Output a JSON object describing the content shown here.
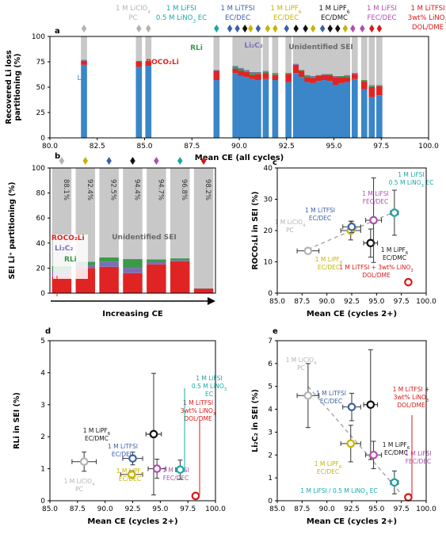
{
  "colors": {
    "li0": "#3a86c8",
    "roco2li": "#e02424",
    "rli": "#3a9a48",
    "li2c2": "#7b6fb5",
    "unidentified": "#c8c8c8",
    "liclo4_pc": "#b3b3b3",
    "litfsi_ecdec": "#3d60a8",
    "lipf6_ecdec": "#c8b400",
    "lipf6_ecdmc": "#111111",
    "lifsi_fecdec": "#b04fb0",
    "lifsi_lino3_ec": "#18a8a8",
    "litfsi_lino3_doldme": "#d81818"
  },
  "legend_top": [
    {
      "lines": [
        "1 M LiClO",
        "PC"
      ],
      "sub": [
        "4",
        ""
      ],
      "color": "#b3b3b3"
    },
    {
      "lines": [
        "1 M LiFSI",
        "0.5 M LiNO  EC"
      ],
      "sub": [
        "",
        "3"
      ],
      "color": "#18a8a8"
    },
    {
      "lines": [
        "1 M LiTFSI",
        "EC/DEC"
      ],
      "sub": [
        "",
        ""
      ],
      "color": "#3d60a8"
    },
    {
      "lines": [
        "1 M LiPF",
        "EC/DEC"
      ],
      "sub": [
        "6",
        ""
      ],
      "color": "#c8b400"
    },
    {
      "lines": [
        "1 M LiPF",
        "EC/DMC"
      ],
      "sub": [
        "6",
        ""
      ],
      "color": "#111111"
    },
    {
      "lines": [
        "1 M LiFSI",
        "FEC/DEC"
      ],
      "sub": [
        "",
        ""
      ],
      "color": "#b04fb0"
    },
    {
      "lines": [
        "1 M LiTFSI",
        "3wt% LiNO",
        "DOL/DME"
      ],
      "sub": [
        "",
        "3",
        ""
      ],
      "color": "#d81818"
    }
  ],
  "chart_data": [
    {
      "panel": "a",
      "type": "bar",
      "xlabel": "Mean CE (all cycles)",
      "ylabel": "Recovered Li loss partitioning (%)",
      "xlim": [
        80.0,
        100.0
      ],
      "ylim": [
        0,
        100
      ],
      "xticks": [
        "80.0",
        "82.5",
        "85.0",
        "87.5",
        "90.0",
        "92.5",
        "95.0",
        "97.5",
        "100.0"
      ],
      "yticks": [
        "0",
        "25",
        "50",
        "75",
        "100"
      ],
      "labels": {
        "li0": "Li⁰",
        "roco2li": "ROCO₂Li",
        "rli": "RLi",
        "li2c2": "Li₂C₂",
        "unidentified": "Unidentified SEI"
      },
      "bar_width": 0.2,
      "x": [
        81.8,
        84.7,
        85.2,
        88.8,
        89.8,
        90.1,
        90.4,
        90.7,
        91.0,
        91.4,
        91.9,
        92.6,
        93.0,
        93.3,
        93.6,
        93.9,
        94.2,
        94.5,
        94.8,
        95.1,
        95.4,
        95.7,
        96.1,
        96.6,
        97.0,
        97.4
      ],
      "series": [
        {
          "name": "Li⁰",
          "values": [
            72,
            70,
            71,
            57,
            64,
            61,
            60,
            58,
            57,
            58,
            57,
            55,
            64,
            60,
            55,
            54,
            56,
            57,
            56,
            52,
            54,
            55,
            58,
            48,
            40,
            42
          ]
        },
        {
          "name": "ROCO₂Li",
          "values": [
            4,
            5,
            4,
            9,
            4,
            5,
            5,
            4,
            6,
            6,
            5,
            8,
            8,
            6,
            5,
            5,
            5,
            5,
            6,
            8,
            6,
            5,
            5,
            8,
            10,
            9
          ]
        },
        {
          "name": "RLi",
          "values": [
            0,
            1,
            0,
            0,
            2,
            2,
            1,
            2,
            1,
            1,
            1,
            1,
            0,
            1,
            1,
            1,
            1,
            0,
            1,
            0,
            1,
            1,
            0,
            1,
            1,
            1
          ]
        },
        {
          "name": "Li₂C₂",
          "values": [
            1,
            0,
            1,
            1,
            1,
            1,
            1,
            1,
            1,
            1,
            1,
            0,
            1,
            0,
            1,
            1,
            0,
            1,
            0,
            1,
            0,
            1,
            1,
            0,
            1,
            0
          ]
        },
        {
          "name": "Unidentified SEI",
          "values": [
            23,
            24,
            24,
            33,
            29,
            31,
            33,
            35,
            35,
            34,
            36,
            36,
            27,
            33,
            38,
            39,
            38,
            37,
            37,
            39,
            39,
            38,
            36,
            43,
            48,
            48
          ]
        }
      ],
      "diamond_x": [
        81.8,
        84.7,
        85.2,
        88.8,
        89.5,
        89.9,
        90.3,
        90.6,
        91.0,
        91.5,
        91.9,
        92.5,
        93.0,
        93.5,
        93.9,
        94.4,
        94.8,
        95.2,
        95.6,
        96.0,
        96.5,
        97.0,
        97.4
      ],
      "diamond_series": [
        "liclo4_pc",
        "liclo4_pc",
        "liclo4_pc",
        "lifsi_lino3_ec",
        "litfsi_ecdec",
        "litfsi_ecdec",
        "lipf6_ecdmc",
        "lipf6_ecdec",
        "litfsi_ecdec",
        "lipf6_ecdec",
        "lipf6_ecdec",
        "litfsi_ecdec",
        "lipf6_ecdmc",
        "lipf6_ecdmc",
        "lipf6_ecdec",
        "litfsi_ecdec",
        "lipf6_ecdmc",
        "lipf6_ecdmc",
        "lipf6_ecdec",
        "lifsi_fecdec",
        "lifsi_fecdec",
        "litfsi_lino3_doldme",
        "litfsi_lino3_doldme"
      ]
    },
    {
      "panel": "b",
      "type": "bar",
      "xlabel": "Increasing CE",
      "ylabel": "SEI Li⁺ partitioning (%)",
      "ylim": [
        0,
        100
      ],
      "yticks": [
        "0",
        "20",
        "40",
        "60",
        "80",
        "100"
      ],
      "labels": {
        "roco2li": "ROCO₂Li",
        "li2c2": "Li₂C₂",
        "rli": "RLi",
        "unidentified": "Unidentified SEI"
      },
      "categories": [
        "88.1%",
        "92.4%",
        "92.5%",
        "94.4%",
        "94.7%",
        "96.8%",
        "98.2%"
      ],
      "category_series": [
        "liclo4_pc",
        "lipf6_ecdec",
        "litfsi_ecdec",
        "lipf6_ecdmc",
        "lifsi_fecdec",
        "lifsi_lino3_ec",
        "litfsi_lino3_doldme"
      ],
      "series": [
        {
          "name": "ROCO₂Li",
          "values": [
            13.5,
            20,
            21,
            16,
            23,
            25.5,
            3.5
          ]
        },
        {
          "name": "Li₂C₂",
          "values": [
            4.6,
            2.5,
            4.1,
            4.2,
            2,
            0.8,
            0.2
          ]
        },
        {
          "name": "RLi",
          "values": [
            3.5,
            2.5,
            3.5,
            7,
            2.0,
            1.5,
            0.2
          ]
        },
        {
          "name": "Unidentified SEI",
          "values": [
            78.4,
            75,
            71.4,
            72.8,
            73,
            72.2,
            96.1
          ]
        }
      ]
    },
    {
      "panel": "c",
      "type": "scatter",
      "xlabel": "Mean CE (cycles 2+)",
      "ylabel": "ROCO₂Li in SEI (%)",
      "xlim": [
        85.0,
        100.0
      ],
      "ylim": [
        0,
        40
      ],
      "xticks": [
        "85.0",
        "87.5",
        "90.0",
        "92.5",
        "95.0",
        "97.5",
        "100.0"
      ],
      "yticks": [
        "0",
        "10",
        "20",
        "30",
        "40"
      ],
      "points": [
        {
          "series": "liclo4_pc",
          "x": 88.1,
          "y": 13.5,
          "xerr": 1.1,
          "yerr": 0.6,
          "label": [
            "1 M LiClO",
            "PC"
          ],
          "sub": [
            "4",
            ""
          ]
        },
        {
          "series": "lipf6_ecdec",
          "x": 92.4,
          "y": 20.0,
          "xerr": 1.0,
          "yerr": 3.0,
          "label": [
            "1 M LiPF",
            "EC/DEC"
          ],
          "sub": [
            "6",
            ""
          ]
        },
        {
          "series": "litfsi_ecdec",
          "x": 92.5,
          "y": 21.2,
          "xerr": 0.9,
          "yerr": 1.8,
          "label": [
            "1 M LiTFSI",
            "EC/DEC"
          ],
          "sub": [
            "",
            ""
          ]
        },
        {
          "series": "lipf6_ecdmc",
          "x": 94.4,
          "y": 16.0,
          "xerr": 0.7,
          "yerr": 4.5,
          "label": [
            "1 M LiPF",
            "EC/DMC"
          ],
          "sub": [
            "6",
            ""
          ]
        },
        {
          "series": "lifsi_fecdec",
          "x": 94.7,
          "y": 23.3,
          "xerr": 0.8,
          "yerr": 13.5,
          "label": [
            "1 M LiFSI",
            "FEC/DEC"
          ],
          "sub": [
            "",
            ""
          ]
        },
        {
          "series": "lifsi_lino3_ec",
          "x": 96.8,
          "y": 25.7,
          "xerr": 0.4,
          "yerr": 7.2,
          "label": [
            "1 M LiFSI",
            "0.5 M LiNO  EC"
          ],
          "sub": [
            "",
            "3"
          ]
        },
        {
          "series": "litfsi_lino3_doldme",
          "x": 98.2,
          "y": 3.5,
          "xerr": 0.2,
          "yerr": 0.5,
          "label": [
            "1 M LiTFSI + 3wt% LiNO",
            "DOL/DME"
          ],
          "sub": [
            "3",
            ""
          ]
        }
      ],
      "trend": {
        "x": [
          88.1,
          96.8
        ],
        "y": [
          14.0,
          26.0
        ]
      }
    },
    {
      "panel": "d",
      "type": "scatter",
      "xlabel": "Mean CE (cycles 2+)",
      "ylabel": "RLi in SEI (%)",
      "xlim": [
        85.0,
        100.0
      ],
      "ylim": [
        0,
        5
      ],
      "xticks": [
        "85.0",
        "87.5",
        "90.0",
        "92.5",
        "95.0",
        "97.5",
        "100.0"
      ],
      "yticks": [
        "0",
        "1",
        "2",
        "3",
        "4",
        "5"
      ],
      "points": [
        {
          "series": "liclo4_pc",
          "x": 88.1,
          "y": 1.22,
          "xerr": 1.1,
          "yerr": 0.3,
          "label": [
            "1 M LiClO",
            "PC"
          ],
          "sub": [
            "4",
            ""
          ]
        },
        {
          "series": "lipf6_ecdec",
          "x": 92.4,
          "y": 0.82,
          "xerr": 1.0,
          "yerr": 0.12,
          "label": [
            "1 M LiPF",
            "EC/DEC"
          ],
          "sub": [
            "6",
            ""
          ]
        },
        {
          "series": "litfsi_ecdec",
          "x": 92.5,
          "y": 1.32,
          "xerr": 0.9,
          "yerr": 0.2,
          "label": [
            "1 M LiTFSI",
            "EC/DEC"
          ],
          "sub": [
            "",
            ""
          ]
        },
        {
          "series": "lipf6_ecdmc",
          "x": 94.4,
          "y": 2.08,
          "xerr": 0.7,
          "yerr": 1.9,
          "label": [
            "1 M LiPF",
            "EC/DMC"
          ],
          "sub": [
            "6",
            ""
          ]
        },
        {
          "series": "lifsi_fecdec",
          "x": 94.7,
          "y": 1.0,
          "xerr": 0.8,
          "yerr": 0.3,
          "label": [
            "1 M LiFSI",
            "FEC/DEC"
          ],
          "sub": [
            "",
            ""
          ]
        },
        {
          "series": "lifsi_lino3_ec",
          "x": 96.8,
          "y": 0.97,
          "xerr": 0.4,
          "yerr": 0.3,
          "label": [
            "1 M LiFSI",
            "0.5 M LiNO",
            "EC"
          ],
          "sub": [
            "",
            "3",
            ""
          ]
        },
        {
          "series": "litfsi_lino3_doldme",
          "x": 98.2,
          "y": 0.15,
          "xerr": 0.2,
          "yerr": 0.05,
          "label": [
            "1 M LiTFSI",
            "3wt% LiNO",
            "DOL/DME"
          ],
          "sub": [
            "",
            "3",
            ""
          ]
        }
      ]
    },
    {
      "panel": "e",
      "type": "scatter",
      "xlabel": "Mean CE (cycles 2+)",
      "ylabel": "Li₂C₂ in SEI (%)",
      "xlim": [
        85.0,
        100.0
      ],
      "ylim": [
        0,
        7
      ],
      "xticks": [
        "85.0",
        "87.5",
        "90.0",
        "92.5",
        "95.0",
        "97.5",
        "100.0"
      ],
      "yticks": [
        "0",
        "1",
        "2",
        "3",
        "4",
        "5",
        "6",
        "7"
      ],
      "points": [
        {
          "series": "liclo4_pc",
          "x": 88.1,
          "y": 4.6,
          "xerr": 1.1,
          "yerr": 1.4,
          "label": [
            "1 M LiClO",
            "PC"
          ],
          "sub": [
            "4",
            ""
          ]
        },
        {
          "series": "lipf6_ecdec",
          "x": 92.4,
          "y": 2.5,
          "xerr": 1.0,
          "yerr": 0.8,
          "label": [
            "1 M LiPF",
            "EC/DEC"
          ],
          "sub": [
            "6",
            ""
          ]
        },
        {
          "series": "litfsi_ecdec",
          "x": 92.5,
          "y": 4.1,
          "xerr": 0.9,
          "yerr": 0.6,
          "label": [
            "1 M LiTFSI",
            "EC/DEC"
          ],
          "sub": [
            "",
            ""
          ]
        },
        {
          "series": "lipf6_ecdmc",
          "x": 94.4,
          "y": 4.2,
          "xerr": 0.7,
          "yerr": 2.4,
          "label": [
            "1 M LiPF",
            "EC/DMC"
          ],
          "sub": [
            "6",
            ""
          ]
        },
        {
          "series": "lifsi_fecdec",
          "x": 94.7,
          "y": 2.0,
          "xerr": 0.8,
          "yerr": 0.6,
          "label": [
            "1 M LiFSI",
            "FEC/DEC"
          ],
          "sub": [
            "",
            ""
          ]
        },
        {
          "series": "lifsi_lino3_ec",
          "x": 96.8,
          "y": 0.8,
          "xerr": 0.4,
          "yerr": 0.5,
          "label": [
            "1 M LiFSI / 0.5 M LiNO  EC"
          ],
          "sub": [
            "3"
          ]
        },
        {
          "series": "litfsi_lino3_doldme",
          "x": 98.2,
          "y": 0.15,
          "xerr": 0.2,
          "yerr": 0.05,
          "label": [
            "1 M LiTFSI +",
            "3wt% LiNO",
            "DOL/DME"
          ],
          "sub": [
            "",
            "3",
            ""
          ]
        }
      ],
      "trend": {
        "x": [
          88.1,
          97.5
        ],
        "y": [
          5.0,
          0.3
        ]
      }
    }
  ]
}
